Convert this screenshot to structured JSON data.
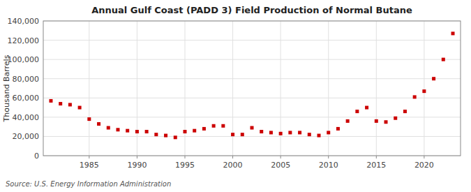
{
  "chart_data": {
    "type": "scatter",
    "title": "Annual Gulf Coast (PADD 3) Field Production of Normal Butane",
    "ylabel": "Thousand Barrels",
    "source": "Source: U.S. Energy Information Administration",
    "color": "#cc0000",
    "marker": "square",
    "grid": true,
    "x": [
      1981,
      1982,
      1983,
      1984,
      1985,
      1986,
      1987,
      1988,
      1989,
      1990,
      1991,
      1992,
      1993,
      1994,
      1995,
      1996,
      1997,
      1998,
      1999,
      2000,
      2001,
      2002,
      2003,
      2004,
      2005,
      2006,
      2007,
      2008,
      2009,
      2010,
      2011,
      2012,
      2013,
      2014,
      2015,
      2016,
      2017,
      2018,
      2019,
      2020,
      2021,
      2022,
      2023
    ],
    "values": [
      57000,
      54000,
      53000,
      50000,
      38000,
      33000,
      29000,
      27000,
      26000,
      25000,
      25000,
      22000,
      21000,
      19000,
      25000,
      26000,
      28000,
      31000,
      31000,
      22000,
      22000,
      29000,
      25000,
      24000,
      23000,
      24000,
      24000,
      22000,
      21000,
      24000,
      28000,
      36000,
      46000,
      50000,
      36000,
      35000,
      39000,
      46000,
      61000,
      67000,
      80000,
      100000,
      127000
    ],
    "xlim": [
      1980.2,
      2023.8
    ],
    "xticks": [
      1985,
      1990,
      1995,
      2000,
      2005,
      2010,
      2015,
      2020
    ],
    "ylim": [
      0,
      140000
    ],
    "yticks": [
      0,
      {
        "value": 20000,
        "label": "20,000"
      },
      {
        "value": 40000,
        "label": "40,000"
      },
      {
        "value": 60000,
        "label": "60,000"
      },
      {
        "value": 80000,
        "label": "80,000"
      },
      {
        "value": 100000,
        "label": "100,000"
      },
      {
        "value": 120000,
        "label": "120,000"
      },
      {
        "value": 140000,
        "label": "140,000"
      }
    ]
  }
}
